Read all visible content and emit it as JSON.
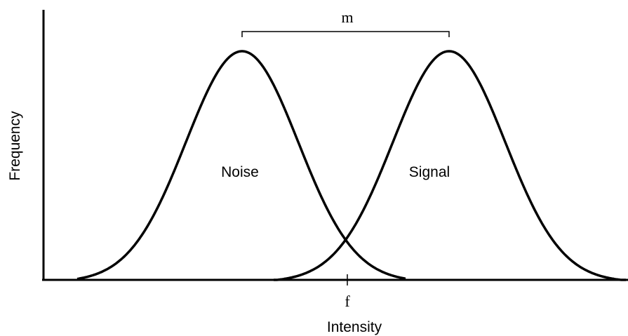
{
  "labels": {
    "separation": "m",
    "criterion": "f",
    "x_axis": "Intensity",
    "y_axis": "Frequency"
  },
  "distributions": [
    {
      "label": "Noise"
    },
    {
      "label": "Signal"
    }
  ]
}
